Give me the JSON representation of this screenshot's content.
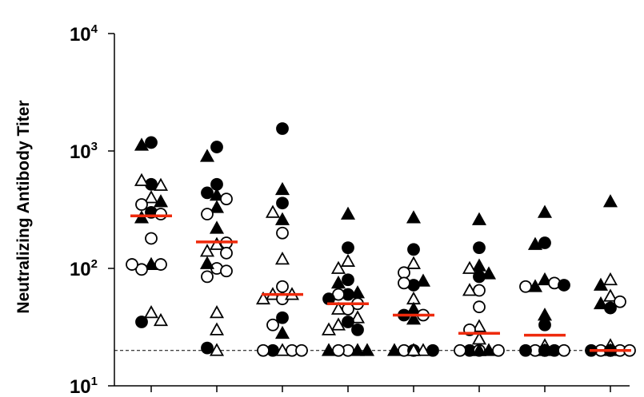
{
  "chart_data": {
    "type": "scatter",
    "title": "",
    "xlabel": "",
    "ylabel": "Neutralizing Antibody Titer",
    "y_scale": "log",
    "ylim": [
      10,
      10000
    ],
    "y_ticks": [
      {
        "value": 10,
        "base": "10",
        "exp": "1"
      },
      {
        "value": 100,
        "base": "10",
        "exp": "2"
      },
      {
        "value": 1000,
        "base": "10",
        "exp": "3"
      },
      {
        "value": 10000,
        "base": "10",
        "exp": "4"
      }
    ],
    "n_groups": 8,
    "reference_line": {
      "y": 20,
      "style": "dashed"
    },
    "median_color": "#ee2a0c",
    "marker_types": [
      "filled-circle",
      "open-circle",
      "filled-triangle",
      "open-triangle"
    ],
    "groups": [
      {
        "median": 280,
        "points": [
          [
            "fc",
            1180
          ],
          [
            "ft",
            1120
          ],
          [
            "fc",
            520
          ],
          [
            "ot",
            560
          ],
          [
            "ot",
            510
          ],
          [
            "ot",
            400
          ],
          [
            "oc",
            350
          ],
          [
            "ft",
            370
          ],
          [
            "fc",
            300
          ],
          [
            "ft",
            270
          ],
          [
            "oc",
            290
          ],
          [
            "oc",
            180
          ],
          [
            "ft",
            108
          ],
          [
            "oc",
            98
          ],
          [
            "oc",
            108
          ],
          [
            "oc",
            108
          ],
          [
            "ot",
            42
          ],
          [
            "fc",
            35
          ],
          [
            "ot",
            36
          ]
        ]
      },
      {
        "median": 168,
        "points": [
          [
            "fc",
            1080
          ],
          [
            "ft",
            900
          ],
          [
            "fc",
            520
          ],
          [
            "fc",
            440
          ],
          [
            "ft",
            420
          ],
          [
            "ft",
            330
          ],
          [
            "oc",
            390
          ],
          [
            "oc",
            290
          ],
          [
            "ft",
            220
          ],
          [
            "ot",
            160
          ],
          [
            "ot",
            140
          ],
          [
            "oc",
            165
          ],
          [
            "oc",
            135
          ],
          [
            "oc",
            100
          ],
          [
            "ft",
            110
          ],
          [
            "oc",
            85
          ],
          [
            "oc",
            95
          ],
          [
            "ot",
            42
          ],
          [
            "ot",
            30
          ],
          [
            "ot",
            20
          ],
          [
            "fc",
            21
          ]
        ]
      },
      {
        "median": 60,
        "points": [
          [
            "fc",
            1550
          ],
          [
            "ft",
            470
          ],
          [
            "fc",
            360
          ],
          [
            "ot",
            300
          ],
          [
            "ft",
            260
          ],
          [
            "oc",
            200
          ],
          [
            "ot",
            120
          ],
          [
            "oc",
            70
          ],
          [
            "ot",
            60
          ],
          [
            "oc",
            55
          ],
          [
            "ot",
            60
          ],
          [
            "ot",
            55
          ],
          [
            "fc",
            38
          ],
          [
            "ft",
            28
          ],
          [
            "oc",
            33
          ],
          [
            "ot",
            20
          ],
          [
            "fc",
            20
          ],
          [
            "oc",
            20
          ],
          [
            "oc",
            20
          ],
          [
            "oc",
            20
          ]
        ]
      },
      {
        "median": 50,
        "points": [
          [
            "ft",
            290
          ],
          [
            "fc",
            150
          ],
          [
            "ot",
            115
          ],
          [
            "ot",
            100
          ],
          [
            "fc",
            80
          ],
          [
            "ft",
            75
          ],
          [
            "fc",
            60
          ],
          [
            "oc",
            60
          ],
          [
            "ft",
            62
          ],
          [
            "fc",
            55
          ],
          [
            "oc",
            50
          ],
          [
            "oc",
            45
          ],
          [
            "ot",
            45
          ],
          [
            "ot",
            38
          ],
          [
            "fc",
            35
          ],
          [
            "ot",
            33
          ],
          [
            "fc",
            30
          ],
          [
            "ot",
            30
          ],
          [
            "oc",
            20
          ],
          [
            "oc",
            20
          ],
          [
            "ft",
            20
          ],
          [
            "ft",
            20
          ],
          [
            "ft",
            20
          ]
        ]
      },
      {
        "median": 40,
        "points": [
          [
            "ft",
            270
          ],
          [
            "fc",
            145
          ],
          [
            "ot",
            110
          ],
          [
            "oc",
            92
          ],
          [
            "fc",
            72
          ],
          [
            "ft",
            78
          ],
          [
            "oc",
            75
          ],
          [
            "ot",
            55
          ],
          [
            "ft",
            45
          ],
          [
            "fc",
            40
          ],
          [
            "ft",
            37
          ],
          [
            "oc",
            40
          ],
          [
            "oc",
            20
          ],
          [
            "oc",
            20
          ],
          [
            "ot",
            20
          ],
          [
            "ft",
            20
          ],
          [
            "fc",
            20
          ],
          [
            "fc",
            20
          ],
          [
            "ot",
            20
          ],
          [
            "ot",
            20
          ]
        ]
      },
      {
        "median": 28,
        "points": [
          [
            "ft",
            260
          ],
          [
            "fc",
            150
          ],
          [
            "ft",
            105
          ],
          [
            "ot",
            100
          ],
          [
            "ft",
            90
          ],
          [
            "fc",
            85
          ],
          [
            "oc",
            65
          ],
          [
            "ot",
            65
          ],
          [
            "oc",
            47
          ],
          [
            "ot",
            32
          ],
          [
            "oc",
            30
          ],
          [
            "ot",
            25
          ],
          [
            "ot",
            20
          ],
          [
            "fc",
            20
          ],
          [
            "ft",
            20
          ],
          [
            "oc",
            20
          ],
          [
            "oc",
            20
          ],
          [
            "oc",
            20
          ],
          [
            "ft",
            20
          ],
          [
            "ft",
            20
          ]
        ]
      },
      {
        "median": 27,
        "points": [
          [
            "ft",
            300
          ],
          [
            "fc",
            165
          ],
          [
            "ft",
            160
          ],
          [
            "ft",
            80
          ],
          [
            "ft",
            70
          ],
          [
            "oc",
            75
          ],
          [
            "oc",
            70
          ],
          [
            "fc",
            72
          ],
          [
            "ft",
            40
          ],
          [
            "fc",
            33
          ],
          [
            "ot",
            22
          ],
          [
            "oc",
            20
          ],
          [
            "fc",
            20
          ],
          [
            "fc",
            20
          ],
          [
            "oc",
            20
          ],
          [
            "ft",
            20
          ],
          [
            "oc",
            20
          ],
          [
            "fc",
            20
          ],
          [
            "fc",
            20
          ]
        ]
      },
      {
        "median": 20,
        "points": [
          [
            "ft",
            370
          ],
          [
            "ot",
            80
          ],
          [
            "ft",
            72
          ],
          [
            "ot",
            58
          ],
          [
            "ft",
            50
          ],
          [
            "oc",
            52
          ],
          [
            "fc",
            46
          ],
          [
            "ot",
            22
          ],
          [
            "oc",
            20
          ],
          [
            "oc",
            20
          ],
          [
            "fc",
            20
          ],
          [
            "oc",
            20
          ],
          [
            "ft",
            20
          ],
          [
            "oc",
            20
          ],
          [
            "fc",
            20
          ],
          [
            "fc",
            20
          ]
        ]
      }
    ]
  }
}
